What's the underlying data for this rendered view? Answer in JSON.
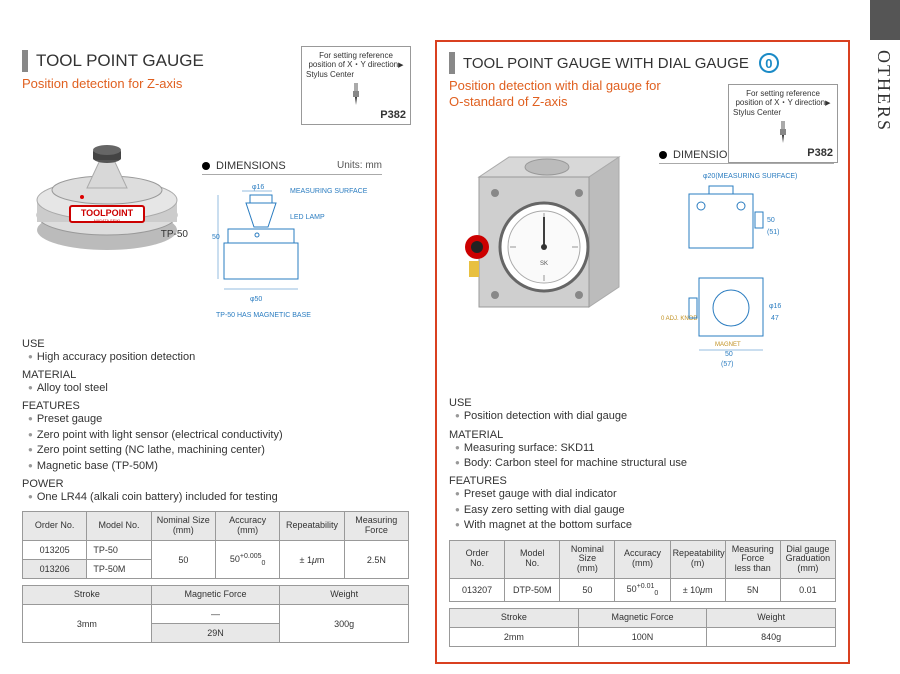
{
  "sideLabel": "OTHERS",
  "left": {
    "title": "TOOL POINT GAUGE",
    "subtitle": "Position detection for Z-axis",
    "refBox": {
      "line1": "For setting reference",
      "line2": "position of X・Y direction",
      "stylus": "Stylus Center",
      "page": "P382"
    },
    "productLabel": "TP-50",
    "productBadge": "TOOLPOINT",
    "productBadgeSub": "NIIGATA SEIKI",
    "dimensionsTitle": "DIMENSIONS",
    "dimensionsUnits": "Units: mm",
    "dimAnnot": {
      "phi16": "φ16",
      "meas": "MEASURING SURFACE",
      "led": "LED LAMP",
      "h50": "50",
      "phi50": "φ50",
      "note": "TP-50 HAS MAGNETIC BASE"
    },
    "sections": {
      "use": "USE",
      "useItems": [
        "High accuracy position detection"
      ],
      "material": "MATERIAL",
      "materialItems": [
        "Alloy tool steel"
      ],
      "features": "FEATURES",
      "featuresItems": [
        "Preset gauge",
        "Zero point with light sensor (electrical conductivity)",
        "Zero point setting (NC lathe, machining center)",
        "Magnetic base (TP-50M)"
      ],
      "power": "POWER",
      "powerItems": [
        "One LR44 (alkali coin battery) included for testing"
      ]
    },
    "table1": {
      "headers": [
        "Order No.",
        "Model No.",
        "Nominal Size\n(mm)",
        "Accuracy\n(mm)",
        "Repeatability",
        "Measuring\nForce"
      ],
      "rows": [
        {
          "order": "013205",
          "model": "TP-50"
        },
        {
          "order": "013206",
          "model": "TP-50M"
        }
      ],
      "nominal": "50",
      "accuracyBase": "50",
      "accuracySup": "+0.005",
      "accuracySub": "0",
      "repeat": "± 1μm",
      "force": "2.5N"
    },
    "table2": {
      "headers": [
        "Stroke",
        "Magnetic Force",
        "Weight"
      ],
      "stroke": "3mm",
      "mag1": "—",
      "mag2": "29N",
      "weight": "300g"
    }
  },
  "right": {
    "title": "TOOL POINT GAUGE WITH DIAL GAUGE",
    "badgeLetter": "0",
    "subtitle": "Position detection with dial gauge for\nO-standard of Z-axis",
    "refBox": {
      "line1": "For setting reference",
      "line2": "position of X・Y direction",
      "stylus": "Stylus Center",
      "page": "P382"
    },
    "dimensionsTitle": "DIMENSIONS",
    "dimensionsUnits": "Units: mm",
    "dimAnnot": {
      "phi20": "φ20(MEASURING SURFACE)",
      "h50": "50",
      "s51": "(51)",
      "knob": "0 ADJ. KNOB",
      "phi16": "φ16",
      "magnet": "MAGNET",
      "w50": "50",
      "w57": "(57)",
      "h47": "47"
    },
    "sections": {
      "use": "USE",
      "useItems": [
        "Position detection with dial gauge"
      ],
      "material": "MATERIAL",
      "materialItems": [
        "Measuring surface: SKD11",
        "Body: Carbon steel for machine structural use"
      ],
      "features": "FEATURES",
      "featuresItems": [
        "Preset gauge with dial indicator",
        "Easy zero setting with dial gauge",
        "With magnet at the bottom surface"
      ]
    },
    "table1": {
      "headers": [
        "Order\nNo.",
        "Model\nNo.",
        "Nominal Size\n(mm)",
        "Accuracy\n(mm)",
        "Repeatability\n(m)",
        "Measuring Force\nless than",
        "Dial gauge Graduation\n(mm)"
      ],
      "row": {
        "order": "013207",
        "model": "DTP-50M",
        "nominal": "50",
        "accuracyBase": "50",
        "accuracySup": "+0.01",
        "accuracySub": "0",
        "repeat": "± 10μm",
        "force": "5N",
        "grad": "0.01"
      }
    },
    "table2": {
      "headers": [
        "Stroke",
        "Magnetic Force",
        "Weight"
      ],
      "stroke": "2mm",
      "mag": "100N",
      "weight": "840g"
    }
  },
  "colors": {
    "accent": "#e06020",
    "redBorder": "#d94020",
    "blueDim": "#2a7cc0",
    "gold": "#c09020",
    "headerBg": "#e8e8e8",
    "shadeBg": "#e8e8e8",
    "cyanRing": "#1a8ac6"
  }
}
